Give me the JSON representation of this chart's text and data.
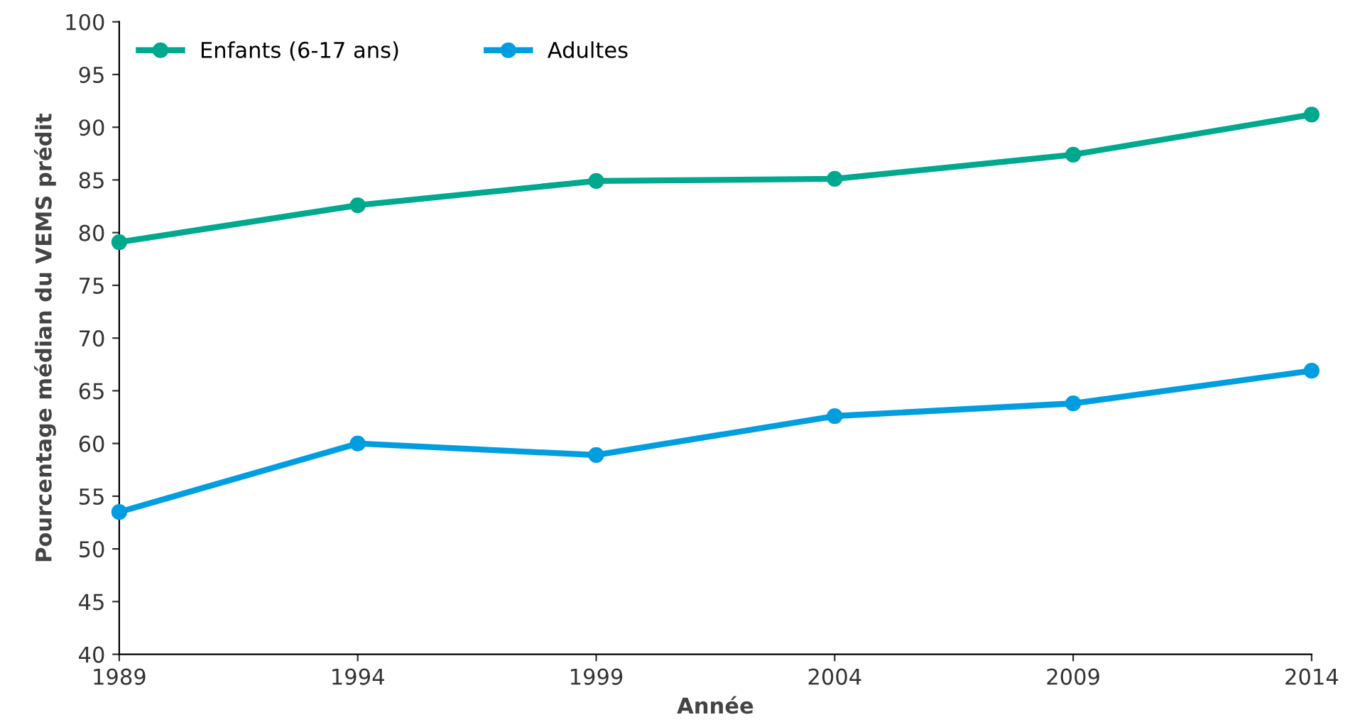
{
  "chart_data": {
    "type": "line",
    "xlabel": "Année",
    "ylabel": "Pourcentage médian du VEMS prédit",
    "x": [
      1989,
      1994,
      1999,
      2004,
      2009,
      2014
    ],
    "series": [
      {
        "name": "Enfants (6-17 ans)",
        "color": "#00a88e",
        "values": [
          79.1,
          82.6,
          84.9,
          85.1,
          87.4,
          91.2
        ]
      },
      {
        "name": "Adultes",
        "color": "#009ee0",
        "values": [
          53.5,
          60.0,
          58.9,
          62.6,
          63.8,
          66.9
        ]
      }
    ],
    "xlim": [
      1989,
      2014
    ],
    "xticks": [
      1989,
      1994,
      1999,
      2004,
      2009,
      2014
    ],
    "ylim": [
      40,
      100
    ],
    "yticks": [
      40,
      45,
      50,
      55,
      60,
      65,
      70,
      75,
      80,
      85,
      90,
      95,
      100
    ],
    "grid": false,
    "legend": "top left",
    "marker": "circle",
    "line_style": "solid"
  }
}
